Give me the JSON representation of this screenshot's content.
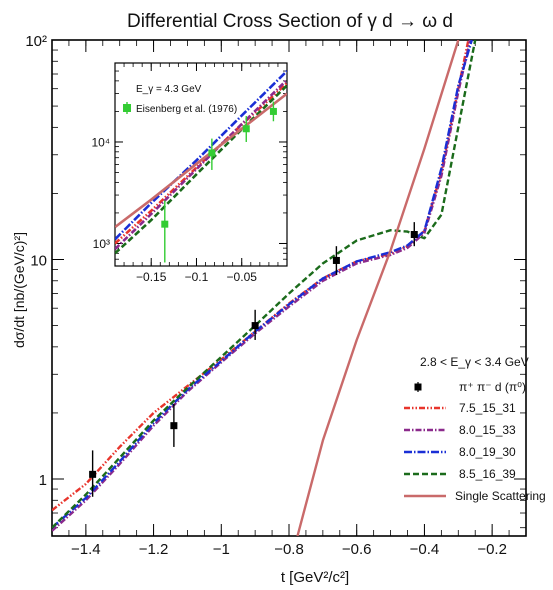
{
  "chart_data": [
    {
      "type": "line",
      "title": "Differential Cross Section of γ d → ω d",
      "xlabel": "t [GeV²/c²]",
      "ylabel": "dσ/dt [nb/(GeV/c)²]",
      "xlim": [
        -1.5,
        -0.1
      ],
      "ylim": [
        0.55,
        100
      ],
      "yscale": "log",
      "x_ticks": [
        "−1.4",
        "−1.2",
        "−1",
        "−0.8",
        "−0.6",
        "−0.4",
        "−0.2"
      ],
      "y_ticks": [
        "1",
        "10",
        "10²"
      ],
      "legend_header": "2.8 < E_γ < 3.4 GeV",
      "legend_position": "bottom-right",
      "data_label": "π⁺ π⁻ d (π⁰)",
      "data_points": [
        {
          "x": -1.38,
          "y": 1.05,
          "yerr_low": 0.22,
          "yerr_high": 0.3
        },
        {
          "x": -1.14,
          "y": 1.75,
          "yerr_low": 0.35,
          "yerr_high": 0.45
        },
        {
          "x": -0.9,
          "y": 5.0,
          "yerr_low": 0.7,
          "yerr_high": 0.9
        },
        {
          "x": -0.66,
          "y": 9.9,
          "yerr_low": 1.4,
          "yerr_high": 1.6
        },
        {
          "x": -0.43,
          "y": 13.0,
          "yerr_low": 1.5,
          "yerr_high": 1.8
        }
      ],
      "series": [
        {
          "name": "7.5_15_31",
          "color": "#e8352c",
          "dash": "6,2,1.5,2,1.5,2",
          "x": [
            -1.5,
            -1.4,
            -1.3,
            -1.2,
            -1.1,
            -1.0,
            -0.9,
            -0.8,
            -0.7,
            -0.6,
            -0.5,
            -0.45,
            -0.4,
            -0.35,
            -0.3,
            -0.27
          ],
          "y": [
            0.72,
            0.95,
            1.4,
            2.0,
            2.65,
            3.5,
            4.7,
            6.3,
            8.2,
            9.8,
            10.6,
            11.5,
            13.5,
            25,
            60,
            100
          ]
        },
        {
          "name": "8.0_15_33",
          "color": "#8b2a8c",
          "dash": "6,2,1.5,2",
          "x": [
            -1.5,
            -1.4,
            -1.3,
            -1.2,
            -1.1,
            -1.0,
            -0.9,
            -0.8,
            -0.7,
            -0.6,
            -0.5,
            -0.45,
            -0.4,
            -0.35,
            -0.3,
            -0.265
          ],
          "y": [
            0.58,
            0.8,
            1.17,
            1.75,
            2.5,
            3.4,
            4.6,
            6.1,
            8.0,
            9.6,
            10.5,
            11.3,
            13.2,
            24,
            58,
            100
          ]
        },
        {
          "name": "8.0_19_30",
          "color": "#1a2fd6",
          "dash": "8,2,1.5,2",
          "x": [
            -1.5,
            -1.4,
            -1.3,
            -1.2,
            -1.1,
            -1.0,
            -0.9,
            -0.8,
            -0.7,
            -0.6,
            -0.5,
            -0.45,
            -0.4,
            -0.35,
            -0.3,
            -0.26
          ],
          "y": [
            0.6,
            0.82,
            1.2,
            1.8,
            2.55,
            3.45,
            4.7,
            6.25,
            8.2,
            9.8,
            10.8,
            11.6,
            13.5,
            26,
            62,
            100
          ]
        },
        {
          "name": "8.5_16_39",
          "color": "#1b6b1b",
          "dash": "6,3",
          "x": [
            -1.5,
            -1.4,
            -1.3,
            -1.2,
            -1.1,
            -1.0,
            -0.9,
            -0.8,
            -0.7,
            -0.6,
            -0.5,
            -0.45,
            -0.4,
            -0.35,
            -0.3,
            -0.25
          ],
          "y": [
            0.6,
            0.85,
            1.25,
            1.85,
            2.6,
            3.6,
            5.0,
            7.0,
            9.6,
            12.2,
            13.6,
            13.4,
            12.5,
            16,
            40,
            100
          ]
        },
        {
          "name": "Single Scattering",
          "color": "#c96a6a",
          "dash": "",
          "x": [
            -0.775,
            -0.7,
            -0.6,
            -0.5,
            -0.4,
            -0.3
          ],
          "y": [
            0.55,
            1.5,
            4.3,
            11.0,
            32,
            100
          ]
        }
      ]
    },
    {
      "type": "line",
      "title": "",
      "inset_label": "E_γ = 4.3 GeV",
      "xlim": [
        -0.19,
        0.0
      ],
      "ylim": [
        600,
        60000
      ],
      "yscale": "log",
      "x_ticks": [
        "−0.15",
        "−0.1",
        "−0.05"
      ],
      "y_ticks": [
        "10³",
        "10⁴"
      ],
      "data_label": "Eisenberg et al. (1976)",
      "data_points": [
        {
          "x": -0.135,
          "y": 1550,
          "yerr_low": 900,
          "yerr_high": 1100
        },
        {
          "x": -0.083,
          "y": 7800,
          "yerr_low": 2500,
          "yerr_high": 3000
        },
        {
          "x": -0.045,
          "y": 13500,
          "yerr_low": 3500,
          "yerr_high": 4500
        },
        {
          "x": -0.015,
          "y": 20000,
          "yerr_low": 4000,
          "yerr_high": 5000
        }
      ],
      "series": [
        {
          "name": "7.5_15_31",
          "color": "#e8352c",
          "dash": "6,2,1.5,2,1.5,2",
          "x": [
            -0.19,
            -0.15,
            -0.1,
            -0.05,
            0.0
          ],
          "y": [
            1000,
            2100,
            5600,
            14800,
            38000
          ]
        },
        {
          "name": "8.0_15_33",
          "color": "#8b2a8c",
          "dash": "6,2,1.5,2",
          "x": [
            -0.19,
            -0.15,
            -0.1,
            -0.05,
            0.0
          ],
          "y": [
            880,
            1950,
            5400,
            15000,
            41000
          ]
        },
        {
          "name": "8.0_19_30",
          "color": "#1a2fd6",
          "dash": "8,2,1.5,2",
          "x": [
            -0.19,
            -0.15,
            -0.1,
            -0.05,
            0.0
          ],
          "y": [
            1100,
            2500,
            6600,
            18200,
            50000
          ]
        },
        {
          "name": "8.5_16_39",
          "color": "#1b6b1b",
          "dash": "6,3",
          "x": [
            -0.19,
            -0.15,
            -0.1,
            -0.05,
            0.0
          ],
          "y": [
            800,
            1700,
            4800,
            13300,
            36000
          ]
        },
        {
          "name": "Single Scattering",
          "color": "#c96a6a",
          "dash": "",
          "x": [
            -0.19,
            -0.15,
            -0.1,
            -0.05,
            0.0
          ],
          "y": [
            1450,
            2700,
            6100,
            13500,
            30000
          ]
        }
      ]
    }
  ]
}
